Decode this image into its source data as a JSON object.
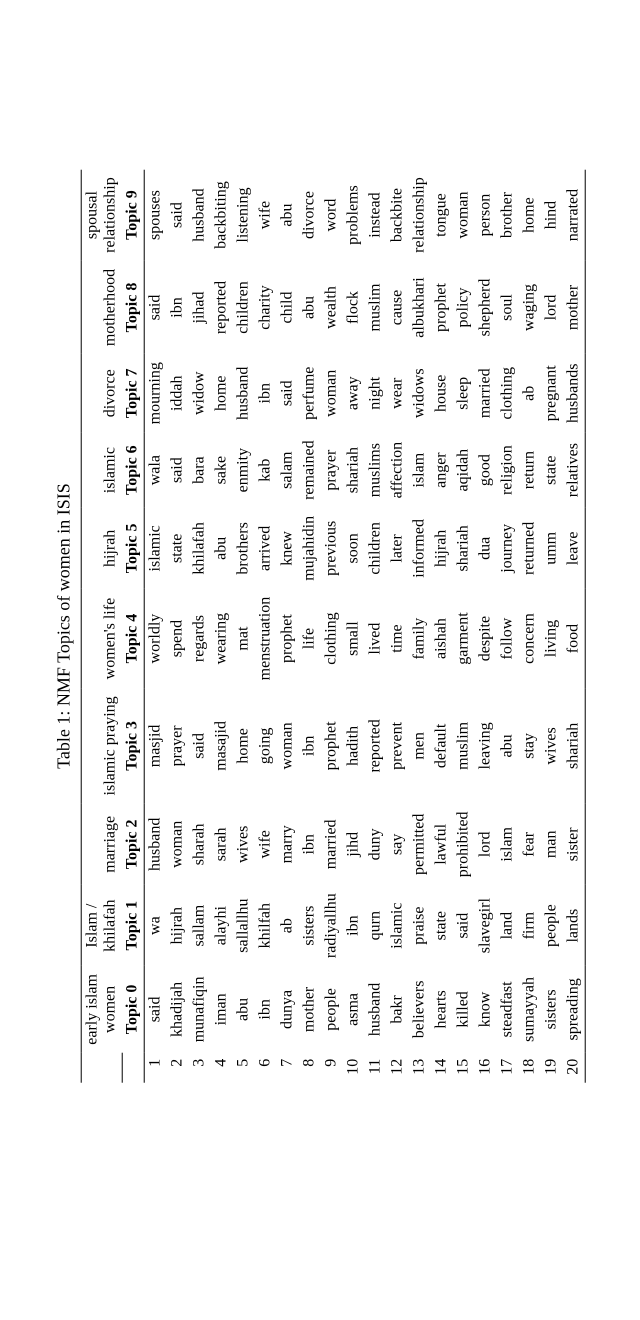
{
  "caption": "Table 1: NMF Topics of women in ISIS",
  "categories": [
    "early islam women",
    "Islam / khilafah",
    "marriage",
    "islamic praying",
    "women's life",
    "hijrah",
    "islamic",
    "divorce",
    "motherhood",
    "spousal relationship"
  ],
  "topics": [
    "Topic 0",
    "Topic 1",
    "Topic 2",
    "Topic 3",
    "Topic 4",
    "Topic 5",
    "Topic 6",
    "Topic 7",
    "Topic 8",
    "Topic 9"
  ],
  "rows": [
    [
      "said",
      "wa",
      "husband",
      "masjid",
      "worldly",
      "islamic",
      "wala",
      "mourning",
      "said",
      "spouses"
    ],
    [
      "khadijah",
      "hijrah",
      "woman",
      "prayer",
      "spend",
      "state",
      "said",
      "iddah",
      "ibn",
      "said"
    ],
    [
      "munafiqin",
      "sallam",
      "sharah",
      "said",
      "regards",
      "khilafah",
      "bara",
      "widow",
      "jihad",
      "husband"
    ],
    [
      "iman",
      "alayhi",
      "sarah",
      "masajid",
      "wearing",
      "abu",
      "sake",
      "home",
      "reported",
      "backbiting"
    ],
    [
      "abu",
      "sallallhu",
      "wives",
      "home",
      "mat",
      "brothers",
      "enmity",
      "husband",
      "children",
      "listening"
    ],
    [
      "ibn",
      "khilfah",
      "wife",
      "going",
      "menstruation",
      "arrived",
      "kab",
      "ibn",
      "charity",
      "wife"
    ],
    [
      "dunya",
      "ab",
      "marry",
      "woman",
      "prophet",
      "knew",
      "salam",
      "said",
      "child",
      "abu"
    ],
    [
      "mother",
      "sisters",
      "ibn",
      "ibn",
      "life",
      "mujahidin",
      "remained",
      "perfume",
      "abu",
      "divorce"
    ],
    [
      "people",
      "radiyallhu",
      "married",
      "prophet",
      "clothing",
      "previous",
      "prayer",
      "woman",
      "wealth",
      "word"
    ],
    [
      "asma",
      "ibn",
      "jihd",
      "hadith",
      "small",
      "soon",
      "shariah",
      "away",
      "flock",
      "problems"
    ],
    [
      "husband",
      "qurn",
      "duny",
      "reported",
      "lived",
      "children",
      "muslims",
      "night",
      "muslim",
      "instead"
    ],
    [
      "bakr",
      "islamic",
      "say",
      "prevent",
      "time",
      "later",
      "affection",
      "wear",
      "cause",
      "backbite"
    ],
    [
      "believers",
      "praise",
      "permitted",
      "men",
      "family",
      "informed",
      "islam",
      "widows",
      "albukhari",
      "relationship"
    ],
    [
      "hearts",
      "state",
      "lawful",
      "default",
      "aishah",
      "hijrah",
      "anger",
      "house",
      "prophet",
      "tongue"
    ],
    [
      "killed",
      "said",
      "prohibited",
      "muslim",
      "garment",
      "shariah",
      "aqidah",
      "sleep",
      "policy",
      "woman"
    ],
    [
      "know",
      "slavegirl",
      "lord",
      "leaving",
      "despite",
      "dua",
      "good",
      "married",
      "shepherd",
      "person"
    ],
    [
      "steadfast",
      "land",
      "islam",
      "abu",
      "follow",
      "journey",
      "religion",
      "clothing",
      "soul",
      "brother"
    ],
    [
      "sumayyah",
      "firm",
      "fear",
      "stay",
      "concern",
      "returned",
      "return",
      "ab",
      "waging",
      "home"
    ],
    [
      "sisters",
      "people",
      "man",
      "wives",
      "living",
      "umm",
      "state",
      "pregnant",
      "lord",
      "hind"
    ],
    [
      "spreading",
      "lands",
      "sister",
      "shariah",
      "food",
      "leave",
      "relatives",
      "husbands",
      "mother",
      "narrated"
    ]
  ],
  "style": {
    "background_color": "#ffffff",
    "text_color": "#000000",
    "border_color": "#000000",
    "font_family": "Times New Roman",
    "caption_fontsize": 18,
    "cell_fontsize": 16,
    "rotation_deg": -90,
    "num_columns": 10,
    "num_rows": 20
  }
}
